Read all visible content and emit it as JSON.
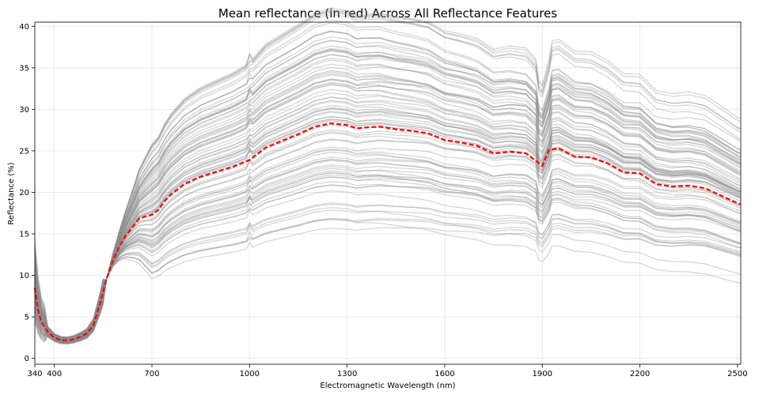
{
  "chart_data": {
    "type": "line",
    "title": "Mean reflectance (in red) Across All Reflectance Features",
    "xlabel": "Electromagnetic Wavelength (nm)",
    "ylabel": "Reflectance (%)",
    "xlim": [
      340,
      2510
    ],
    "ylim": [
      -0.7,
      40.5
    ],
    "grid": true,
    "x_ticks": [
      340,
      400,
      700,
      1000,
      1300,
      1600,
      1900,
      2200,
      2500
    ],
    "y_ticks": [
      0,
      5,
      10,
      15,
      20,
      25,
      30,
      35,
      40
    ],
    "colors": {
      "samples": "#8c8c8c",
      "mean": "#ff0000"
    },
    "mean_series": {
      "x": [
        340,
        350,
        360,
        380,
        400,
        420,
        440,
        460,
        480,
        500,
        520,
        540,
        560,
        580,
        600,
        620,
        640,
        660,
        680,
        700,
        720,
        740,
        760,
        800,
        850,
        900,
        950,
        1000,
        1050,
        1100,
        1150,
        1200,
        1250,
        1300,
        1330,
        1350,
        1400,
        1450,
        1500,
        1550,
        1600,
        1650,
        1700,
        1750,
        1800,
        1850,
        1880,
        1900,
        1920,
        1950,
        2000,
        2050,
        2100,
        2150,
        2200,
        2250,
        2300,
        2350,
        2400,
        2450,
        2500,
        2510
      ],
      "y": [
        8.5,
        5.8,
        4.4,
        3.2,
        2.5,
        2.2,
        2.15,
        2.3,
        2.6,
        3.0,
        4.0,
        6.5,
        9.5,
        11.8,
        13.5,
        14.8,
        15.8,
        16.8,
        17.1,
        17.3,
        17.9,
        19.0,
        19.8,
        21.0,
        21.9,
        22.5,
        23.1,
        23.9,
        25.4,
        26.2,
        27.0,
        27.9,
        28.3,
        28.1,
        27.7,
        27.8,
        27.9,
        27.6,
        27.4,
        27.1,
        26.3,
        26.0,
        25.6,
        24.7,
        24.9,
        24.7,
        23.8,
        23.2,
        25.1,
        25.3,
        24.3,
        24.2,
        23.5,
        22.4,
        22.3,
        21.0,
        20.7,
        20.8,
        20.5,
        19.6,
        18.7,
        18.6
      ]
    },
    "sample_series_count": 90
  }
}
